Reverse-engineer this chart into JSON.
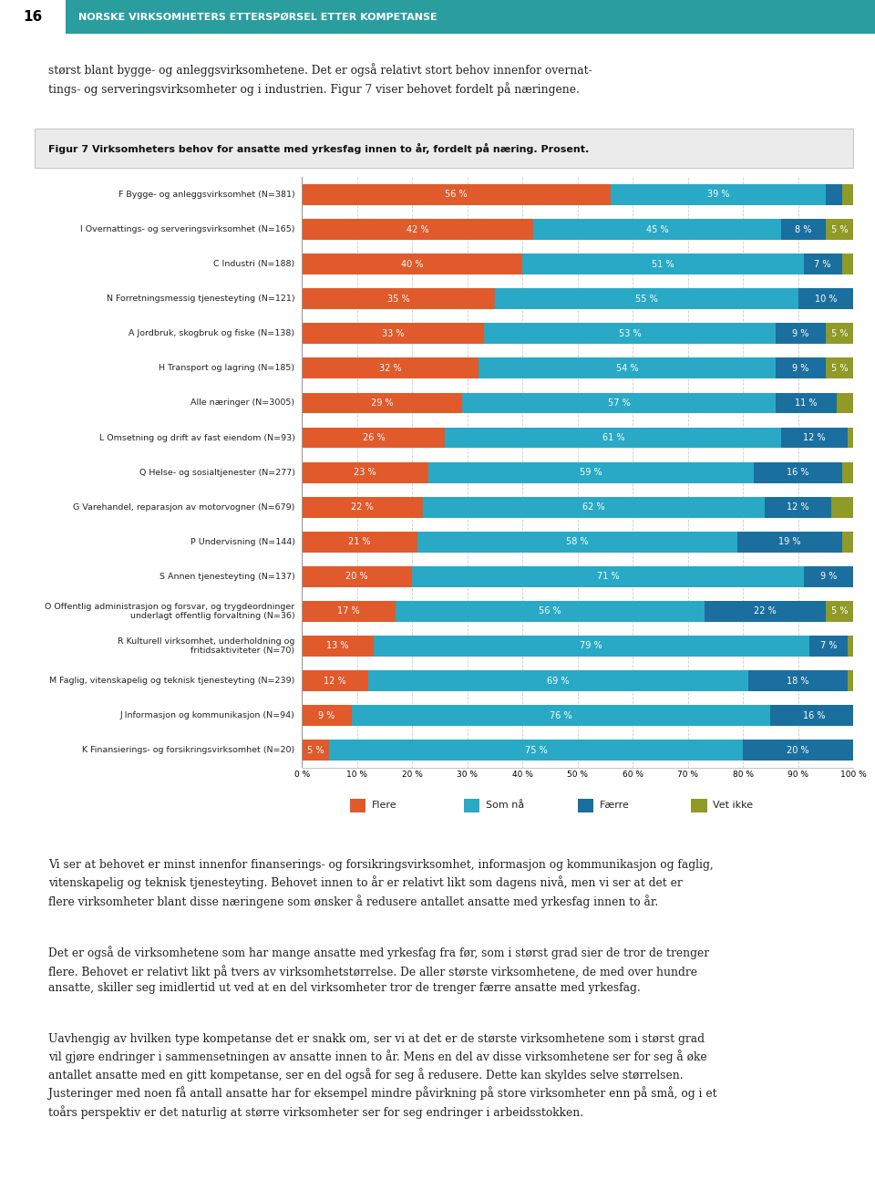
{
  "title": "Figur 7 Virksomheters behov for ansatte med yrkesfag innen to år, fordelt på næring. Prosent.",
  "categories": [
    "F Bygge- og anleggsvirksomhet (N=381)",
    "I Overnattings- og serveringsvirksomhet (N=165)",
    "C Industri (N=188)",
    "N Forretningsmessig tjenesteyting (N=121)",
    "A Jordbruk, skogbruk og fiske (N=138)",
    "H Transport og lagring (N=185)",
    "Alle næringer (N=3005)",
    "L Omsetning og drift av fast eiendom (N=93)",
    "Q Helse- og sosialtjenester (N=277)",
    "G Varehandel, reparasjon av motorvogner (N=679)",
    "P Undervisning (N=144)",
    "S Annen tjenesteyting (N=137)",
    "O Offentlig administrasjon og forsvar, og trygdeordninger\nunderlagt offentlig forvaltning (N=36)",
    "R Kulturell virksomhet, underholdning og\nfritidsaktiviteter (N=70)",
    "M Faglig, vitenskapelig og teknisk tjenesteyting (N=239)",
    "J Informasjon og kommunikasjon (N=94)",
    "K Finansierings- og forsikringsvirksomhet (N=20)"
  ],
  "flere": [
    56,
    42,
    40,
    35,
    33,
    32,
    29,
    26,
    23,
    22,
    21,
    20,
    17,
    13,
    12,
    9,
    5
  ],
  "som_na": [
    39,
    45,
    51,
    55,
    53,
    54,
    57,
    61,
    59,
    62,
    58,
    71,
    56,
    79,
    69,
    76,
    75
  ],
  "faerre": [
    3,
    8,
    7,
    10,
    9,
    9,
    11,
    12,
    16,
    12,
    19,
    9,
    22,
    7,
    18,
    16,
    20
  ],
  "vet_ikke": [
    2,
    5,
    2,
    0,
    5,
    5,
    3,
    1,
    2,
    4,
    2,
    0,
    5,
    1,
    1,
    0,
    0
  ],
  "color_flere": "#e05a2b",
  "color_som_na": "#29a9c5",
  "color_faerre": "#1a6f9f",
  "color_vet_ikke": "#8f9a27",
  "header_bg": "#2a9d9f",
  "page_num": "16",
  "header_label": "NORSKE VIRKSOMHETERS ETTERSPØRSEL ETTER KOMPETANSE",
  "intro_line1": "størst blant bygge- og anleggsvirksomhetene. Det er også relativt stort behov innenfor overnat-",
  "intro_line2": "tings- og serveringsvirksomheter og i industrien. Figur 7 viser behovet fordelt på næringene.",
  "footer_text1": "Vi ser at behovet er minst innenfor finanserings- og forsikringsvirksomhet, informasjon og kommunikasjon og faglig, vitenskapelig og teknisk tjenesteyting. Behovet innen to år er relativt likt som dagens nivå, men vi ser at det er flere virksomheter blant disse næringene som ønsker å redusere antallet ansatte med yrkesfag innen to år.",
  "footer_text2": "Det er også de virksomhetene som har mange ansatte med yrkesfag fra før, som i størst grad sier de tror de trenger flere. Behovet er relativt likt på tvers av virksomhetstørrelse. De aller største virksomhetene, de med over hundre ansatte, skiller seg imidlertid ut ved at en del virksomheter tror de trenger færre ansatte med yrkesfag.",
  "footer_text3": "Uavhengig av hvilken type kompetanse det er snakk om, ser vi at det er de største virksomhetene som i størst grad vil gjøre endringer i sammensetningen av ansatte innen to år. Mens en del av disse virksomhetene ser for seg å øke antallet ansatte med en gitt kompetanse, ser en del også for seg å redusere. Dette kan skyldes selve størrelsen. Justeringer med noen få antall ansatte har for eksempel mindre påvirkning på store virksomheter enn på små, og i et toårs perspektiv er det naturlig at større virksomheter ser for seg endringer i arbeidsstokken.",
  "bar_height": 0.6,
  "background_color": "#ffffff"
}
